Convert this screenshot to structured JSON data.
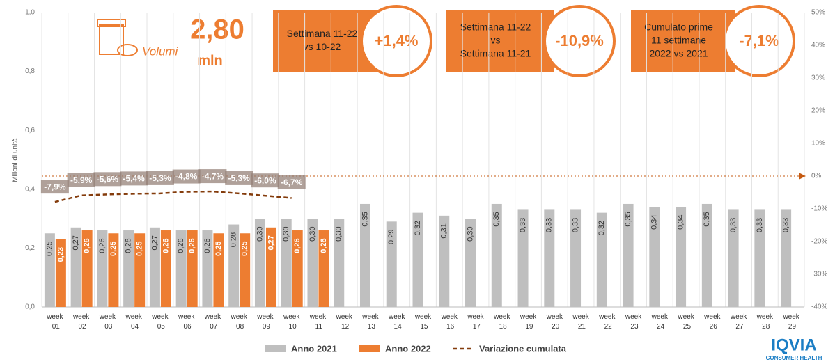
{
  "header": {
    "metric": "Volumi",
    "value": "2,80",
    "unit": "mln"
  },
  "boxes": [
    {
      "lines": [
        "Settimana 11-22",
        "vs 10-22"
      ],
      "value": "+1,4%"
    },
    {
      "lines": [
        "Settimana 11-22",
        "vs",
        "Settimana 11-21"
      ],
      "value": "-10,9%"
    },
    {
      "lines": [
        "Cumulato prime",
        "11 settimane",
        "2022 vs 2021"
      ],
      "value": "-7,1%"
    }
  ],
  "logo": {
    "name": "IQVIA",
    "sub": "CONSUMER HEALTH"
  },
  "chart_data": {
    "type": "bar",
    "ylabel": "Milioni di unità",
    "categories": [
      "week 01",
      "week 02",
      "week 03",
      "week 04",
      "week 05",
      "week 06",
      "week 07",
      "week 08",
      "week 09",
      "week 10",
      "week 11",
      "week 12",
      "week 13",
      "week 14",
      "week 15",
      "week 16",
      "week 17",
      "week 18",
      "week 19",
      "week 20",
      "week 21",
      "week 22",
      "week 23",
      "week 24",
      "week 25",
      "week 26",
      "week 27",
      "week 28",
      "week 29"
    ],
    "ylim": [
      0,
      1
    ],
    "yticks": [
      {
        "value": 0,
        "label": "0,0"
      },
      {
        "value": 0.2,
        "label": "0,2"
      },
      {
        "value": 0.4,
        "label": "0,4"
      },
      {
        "value": 0.6,
        "label": "0,6"
      },
      {
        "value": 0.8,
        "label": "0,8"
      },
      {
        "value": 1,
        "label": "1,0"
      }
    ],
    "y2lim": [
      -40,
      50
    ],
    "y2ticks": [
      {
        "value": -40,
        "label": "-40%"
      },
      {
        "value": -30,
        "label": "-30%"
      },
      {
        "value": -20,
        "label": "-20%"
      },
      {
        "value": -10,
        "label": "-10%"
      },
      {
        "value": 0,
        "label": "0%"
      },
      {
        "value": 10,
        "label": "10%"
      },
      {
        "value": 20,
        "label": "20%"
      },
      {
        "value": 30,
        "label": "30%"
      },
      {
        "value": 40,
        "label": "40%"
      },
      {
        "value": 50,
        "label": "50%"
      }
    ],
    "series": [
      {
        "name": "Anno 2021",
        "color": "#bfbfbf",
        "type": "bar",
        "values": [
          0.25,
          0.27,
          0.26,
          0.26,
          0.27,
          0.26,
          0.26,
          0.28,
          0.3,
          0.3,
          0.3,
          0.3,
          0.35,
          0.29,
          0.32,
          0.31,
          0.3,
          0.35,
          0.33,
          0.33,
          0.33,
          0.32,
          0.35,
          0.34,
          0.34,
          0.35,
          0.33,
          0.33,
          0.33
        ],
        "value_labels": [
          "0,25",
          "0,27",
          "0,26",
          "0,26",
          "0,27",
          "0,26",
          "0,26",
          "0,28",
          "0,30",
          "0,30",
          "0,30",
          "0,30",
          "0,35",
          "0,29",
          "0,32",
          "0,31",
          "0,30",
          "0,35",
          "0,33",
          "0,33",
          "0,33",
          "0,32",
          "0,35",
          "0,34",
          "0,34",
          "0,35",
          "0,33",
          "0,33",
          "0,33"
        ]
      },
      {
        "name": "Anno 2022",
        "color": "#ed7d31",
        "type": "bar",
        "values": [
          0.23,
          0.26,
          0.25,
          0.25,
          0.26,
          0.26,
          0.25,
          0.25,
          0.27,
          0.26,
          0.26,
          null,
          null,
          null,
          null,
          null,
          null,
          null,
          null,
          null,
          null,
          null,
          null,
          null,
          null,
          null,
          null,
          null,
          null
        ],
        "value_labels": [
          "0,23",
          "0,26",
          "0,25",
          "0,25",
          "0,26",
          "0,26",
          "0,25",
          "0,25",
          "0,27",
          "0,26",
          "0,26",
          null,
          null,
          null,
          null,
          null,
          null,
          null,
          null,
          null,
          null,
          null,
          null,
          null,
          null,
          null,
          null,
          null,
          null
        ]
      },
      {
        "name": "Variazione cumulata",
        "color": "#843c0c",
        "type": "line",
        "axis": "y2",
        "values": [
          -7.9,
          -5.9,
          -5.6,
          -5.4,
          -5.3,
          -4.8,
          -4.7,
          -5.3,
          -6.0,
          -6.7,
          null,
          null,
          null,
          null,
          null,
          null,
          null,
          null,
          null,
          null,
          null,
          null,
          null,
          null,
          null,
          null,
          null,
          null,
          null
        ],
        "value_labels": [
          "-7,9%",
          "-5,9%",
          "-5,6%",
          "-5,4%",
          "-5,3%",
          "-4,8%",
          "-4,7%",
          "-5,3%",
          "-6,0%",
          "-6,7%",
          null,
          null,
          null,
          null,
          null,
          null,
          null,
          null,
          null,
          null,
          null,
          null,
          null,
          null,
          null,
          null,
          null,
          null,
          null
        ]
      }
    ]
  }
}
